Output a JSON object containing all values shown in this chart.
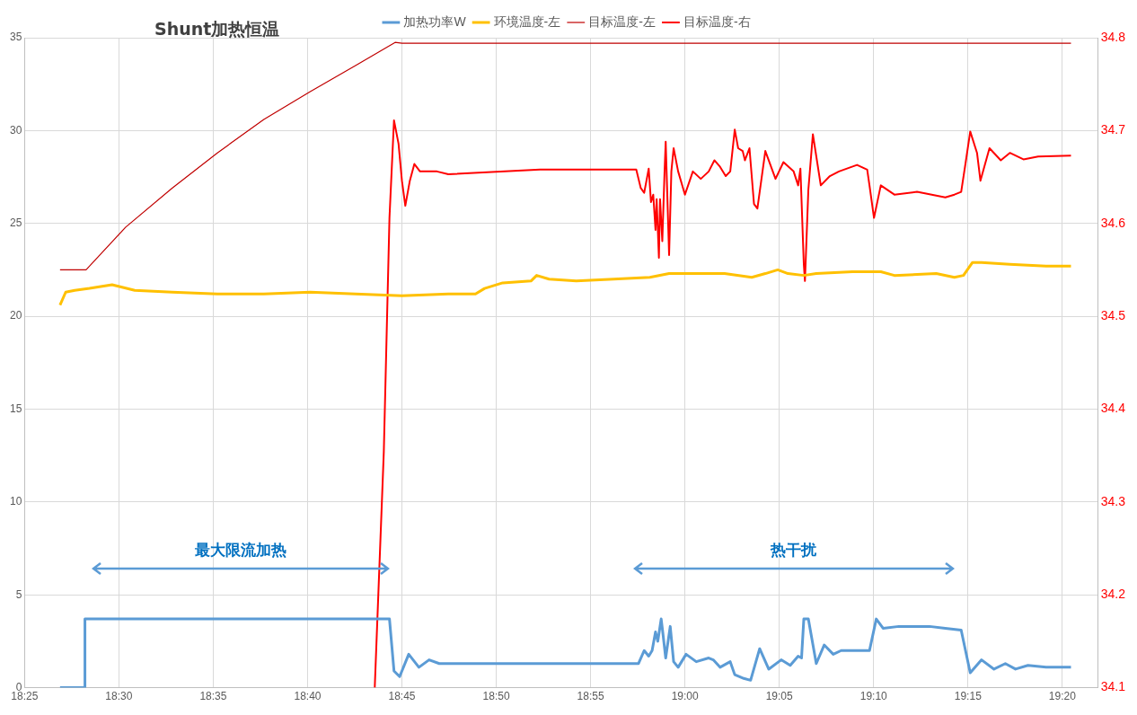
{
  "chart_data": {
    "type": "line",
    "title": "Shunt加热恒温",
    "xlim": [
      18.41667,
      19.365
    ],
    "xticks": [
      {
        "value": 18.41667,
        "label": "18:25"
      },
      {
        "value": 18.5,
        "label": "18:30"
      },
      {
        "value": 18.58333,
        "label": "18:35"
      },
      {
        "value": 18.66667,
        "label": "18:40"
      },
      {
        "value": 18.75,
        "label": "18:45"
      },
      {
        "value": 18.83333,
        "label": "18:50"
      },
      {
        "value": 18.91667,
        "label": "18:55"
      },
      {
        "value": 19.0,
        "label": "19:00"
      },
      {
        "value": 19.08333,
        "label": "19:05"
      },
      {
        "value": 19.16667,
        "label": "19:10"
      },
      {
        "value": 19.25,
        "label": "19:15"
      },
      {
        "value": 19.33333,
        "label": "19:20"
      }
    ],
    "ylim": [
      0,
      35
    ],
    "yticks": [
      0,
      5,
      10,
      15,
      20,
      25,
      30,
      35
    ],
    "y2lim": [
      34.1,
      34.8
    ],
    "y2ticks": [
      34.1,
      34.2,
      34.3,
      34.4,
      34.5,
      34.6,
      34.7,
      34.8
    ],
    "grid": true,
    "legend": "top",
    "marker": "none",
    "annotations": [
      "最大限流加热",
      "热干扰"
    ],
    "series": [
      {
        "name": "加热功率W",
        "color": "#5b9bd5",
        "x": [
          18.448,
          18.47,
          18.47,
          18.739,
          18.743,
          18.748,
          18.756,
          18.765,
          18.774,
          18.783,
          18.959,
          18.964,
          18.968,
          18.971,
          18.974,
          18.976,
          18.979,
          18.98,
          18.983,
          18.987,
          18.99,
          18.994,
          19.001,
          19.01,
          19.021,
          19.025,
          19.031,
          19.04,
          19.044,
          19.052,
          19.058,
          19.066,
          19.074,
          19.085,
          19.093,
          19.1,
          19.103,
          19.105,
          19.109,
          19.116,
          19.123,
          19.131,
          19.138,
          19.151,
          19.163,
          19.169,
          19.175,
          19.189,
          19.216,
          19.23,
          19.244,
          19.252,
          19.262,
          19.273,
          19.283,
          19.292,
          19.303,
          19.319,
          19.341
        ],
        "values": [
          0,
          0,
          3.7,
          3.7,
          0.9,
          0.6,
          1.8,
          1.1,
          1.5,
          1.3,
          1.3,
          2.0,
          1.7,
          2.0,
          3.0,
          2.5,
          3.7,
          3.2,
          1.6,
          3.3,
          1.4,
          1.1,
          1.8,
          1.4,
          1.6,
          1.5,
          1.1,
          1.4,
          0.7,
          0.5,
          0.4,
          2.1,
          1.0,
          1.5,
          1.2,
          1.7,
          1.6,
          3.7,
          3.7,
          1.3,
          2.3,
          1.8,
          2.0,
          2.0,
          2.0,
          3.7,
          3.2,
          3.3,
          3.3,
          3.2,
          3.1,
          0.8,
          1.5,
          1.0,
          1.3,
          1.0,
          1.2,
          1.1,
          1.1
        ]
      },
      {
        "name": "环境温度-左",
        "color": "#ffc000",
        "x": [
          18.448,
          18.453,
          18.461,
          18.474,
          18.494,
          18.514,
          18.547,
          18.587,
          18.628,
          18.669,
          18.709,
          18.75,
          18.791,
          18.815,
          18.823,
          18.839,
          18.864,
          18.869,
          18.88,
          18.904,
          18.937,
          18.969,
          18.986,
          19.002,
          19.035,
          19.059,
          19.071,
          19.082,
          19.091,
          19.105,
          19.116,
          19.148,
          19.173,
          19.185,
          19.222,
          19.238,
          19.246,
          19.254,
          19.262,
          19.287,
          19.319,
          19.341
        ],
        "values": [
          20.6,
          21.3,
          21.4,
          21.5,
          21.7,
          21.4,
          21.3,
          21.2,
          21.2,
          21.3,
          21.2,
          21.1,
          21.2,
          21.2,
          21.5,
          21.8,
          21.9,
          22.2,
          22.0,
          21.9,
          22.0,
          22.1,
          22.3,
          22.3,
          22.3,
          22.1,
          22.3,
          22.5,
          22.3,
          22.2,
          22.3,
          22.4,
          22.4,
          22.2,
          22.3,
          22.1,
          22.2,
          22.9,
          22.9,
          22.8,
          22.7,
          22.7
        ]
      },
      {
        "name": "目标温度-左",
        "color": "#c00000",
        "x": [
          18.448,
          18.471,
          18.506,
          18.547,
          18.587,
          18.628,
          18.669,
          18.709,
          18.744,
          18.75,
          19.341
        ],
        "values": [
          22.5,
          22.5,
          24.8,
          26.9,
          28.8,
          30.6,
          32.1,
          33.5,
          34.75,
          34.7,
          34.7
        ]
      },
      {
        "name": "目标温度-右",
        "color": "#ff0000",
        "axis": "y2",
        "x": [
          18.726,
          18.734,
          18.739,
          18.743,
          18.747,
          18.75,
          18.753,
          18.757,
          18.761,
          18.766,
          18.773,
          18.781,
          18.791,
          18.872,
          18.957,
          18.961,
          18.964,
          18.968,
          18.97,
          18.972,
          18.974,
          18.975,
          18.977,
          18.978,
          18.98,
          18.982,
          18.983,
          18.986,
          18.988,
          18.99,
          18.994,
          19.0,
          19.007,
          19.014,
          19.021,
          19.026,
          19.031,
          19.036,
          19.04,
          19.044,
          19.047,
          19.051,
          19.053,
          19.057,
          19.061,
          19.064,
          19.071,
          19.08,
          19.087,
          19.096,
          19.1,
          19.102,
          19.105,
          19.106,
          19.109,
          19.113,
          19.12,
          19.128,
          19.136,
          19.152,
          19.161,
          19.163,
          19.167,
          19.173,
          19.185,
          19.205,
          19.23,
          19.238,
          19.244,
          19.248,
          19.252,
          19.258,
          19.261,
          19.269,
          19.279,
          19.287,
          19.299,
          19.312,
          19.341
        ],
        "values": [
          34.1,
          34.354,
          34.606,
          34.711,
          34.686,
          34.646,
          34.619,
          34.646,
          34.664,
          34.656,
          34.656,
          34.656,
          34.653,
          34.658,
          34.658,
          34.638,
          34.633,
          34.659,
          34.623,
          34.631,
          34.593,
          34.626,
          34.563,
          34.626,
          34.581,
          34.656,
          34.688,
          34.566,
          34.656,
          34.681,
          34.656,
          34.631,
          34.656,
          34.648,
          34.656,
          34.668,
          34.661,
          34.651,
          34.656,
          34.701,
          34.681,
          34.678,
          34.668,
          34.681,
          34.621,
          34.616,
          34.678,
          34.648,
          34.666,
          34.656,
          34.641,
          34.659,
          34.556,
          34.538,
          34.636,
          34.696,
          34.641,
          34.651,
          34.656,
          34.663,
          34.658,
          34.641,
          34.606,
          34.641,
          34.631,
          34.634,
          34.628,
          34.631,
          34.634,
          34.666,
          34.699,
          34.676,
          34.646,
          34.681,
          34.668,
          34.676,
          34.669,
          34.672,
          34.673
        ]
      }
    ]
  }
}
